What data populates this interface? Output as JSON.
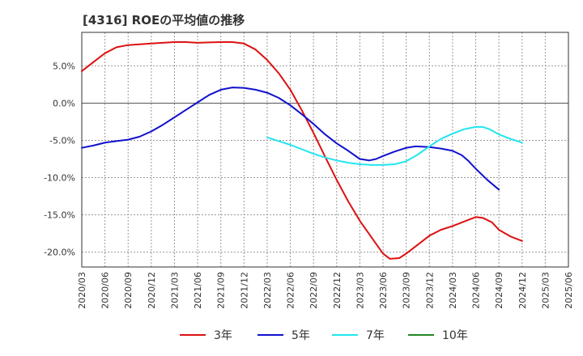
{
  "chart_data": {
    "type": "line",
    "title": "[4316]  ROEの平均値の推移",
    "xlabel": "",
    "ylabel": "",
    "ylim": [
      -22,
      9.5
    ],
    "yticks": [
      5,
      0,
      -5,
      -10,
      -15,
      -20
    ],
    "ytick_labels": [
      "5.0%",
      "0.0%",
      "-5.0%",
      "-10.0%",
      "-15.0%",
      "-20.0%"
    ],
    "xtick_labels": [
      "2020/03",
      "2020/06",
      "2020/09",
      "2020/12",
      "2021/03",
      "2021/06",
      "2021/09",
      "2021/12",
      "2022/03",
      "2022/06",
      "2022/09",
      "2022/12",
      "2023/03",
      "2023/06",
      "2023/09",
      "2023/12",
      "2024/03",
      "2024/06",
      "2024/09",
      "2024/12",
      "2025/03",
      "2025/06"
    ],
    "grid": true,
    "series": [
      {
        "name": "3年",
        "color": "#dd1111",
        "points": [
          [
            0,
            4.3
          ],
          [
            0.5,
            5.5
          ],
          [
            1,
            6.7
          ],
          [
            1.5,
            7.5
          ],
          [
            2,
            7.8
          ],
          [
            2.5,
            7.9
          ],
          [
            3,
            8.0
          ],
          [
            3.5,
            8.1
          ],
          [
            4,
            8.2
          ],
          [
            4.5,
            8.2
          ],
          [
            5,
            8.1
          ],
          [
            5.5,
            8.15
          ],
          [
            6,
            8.2
          ],
          [
            6.5,
            8.2
          ],
          [
            7,
            8.0
          ],
          [
            7.5,
            7.2
          ],
          [
            8,
            5.8
          ],
          [
            8.5,
            4.0
          ],
          [
            9,
            1.8
          ],
          [
            9.5,
            -1.0
          ],
          [
            10,
            -4.0
          ],
          [
            10.5,
            -7.2
          ],
          [
            11,
            -10.3
          ],
          [
            11.5,
            -13.2
          ],
          [
            12,
            -15.8
          ],
          [
            12.5,
            -18.0
          ],
          [
            13,
            -20.2
          ],
          [
            13.3,
            -20.9
          ],
          [
            13.7,
            -20.8
          ],
          [
            14,
            -20.2
          ],
          [
            14.5,
            -19.0
          ],
          [
            15,
            -17.8
          ],
          [
            15.5,
            -17.0
          ],
          [
            16,
            -16.5
          ],
          [
            16.5,
            -15.9
          ],
          [
            17,
            -15.3
          ],
          [
            17.3,
            -15.4
          ],
          [
            17.7,
            -16.0
          ],
          [
            18,
            -17.0
          ],
          [
            18.5,
            -17.9
          ],
          [
            19,
            -18.5
          ]
        ]
      },
      {
        "name": "5年",
        "color": "#1111cc",
        "points": [
          [
            0,
            -6.0
          ],
          [
            0.5,
            -5.7
          ],
          [
            1,
            -5.3
          ],
          [
            1.5,
            -5.1
          ],
          [
            2,
            -4.9
          ],
          [
            2.5,
            -4.5
          ],
          [
            3,
            -3.8
          ],
          [
            3.5,
            -2.9
          ],
          [
            4,
            -1.9
          ],
          [
            4.5,
            -0.9
          ],
          [
            5,
            0.1
          ],
          [
            5.5,
            1.1
          ],
          [
            6,
            1.8
          ],
          [
            6.5,
            2.1
          ],
          [
            7,
            2.05
          ],
          [
            7.5,
            1.8
          ],
          [
            8,
            1.4
          ],
          [
            8.5,
            0.7
          ],
          [
            9,
            -0.3
          ],
          [
            9.5,
            -1.5
          ],
          [
            10,
            -2.8
          ],
          [
            10.5,
            -4.2
          ],
          [
            11,
            -5.4
          ],
          [
            11.5,
            -6.4
          ],
          [
            12,
            -7.5
          ],
          [
            12.4,
            -7.7
          ],
          [
            12.7,
            -7.5
          ],
          [
            13,
            -7.1
          ],
          [
            13.5,
            -6.5
          ],
          [
            14,
            -6.0
          ],
          [
            14.4,
            -5.8
          ],
          [
            15,
            -5.9
          ],
          [
            15.5,
            -6.1
          ],
          [
            16,
            -6.4
          ],
          [
            16.4,
            -7.0
          ],
          [
            16.7,
            -7.8
          ],
          [
            17,
            -8.8
          ],
          [
            17.5,
            -10.3
          ],
          [
            18,
            -11.6
          ]
        ]
      },
      {
        "name": "7年",
        "color": "#22e5f0",
        "points": [
          [
            8,
            -4.6
          ],
          [
            8.5,
            -5.1
          ],
          [
            9,
            -5.6
          ],
          [
            9.5,
            -6.2
          ],
          [
            10,
            -6.8
          ],
          [
            10.5,
            -7.3
          ],
          [
            11,
            -7.7
          ],
          [
            11.5,
            -8.0
          ],
          [
            12,
            -8.2
          ],
          [
            12.5,
            -8.3
          ],
          [
            13,
            -8.3
          ],
          [
            13.5,
            -8.2
          ],
          [
            14,
            -7.8
          ],
          [
            14.5,
            -6.9
          ],
          [
            15,
            -5.8
          ],
          [
            15.5,
            -4.8
          ],
          [
            16,
            -4.1
          ],
          [
            16.5,
            -3.5
          ],
          [
            17,
            -3.2
          ],
          [
            17.3,
            -3.2
          ],
          [
            17.6,
            -3.5
          ],
          [
            18,
            -4.2
          ],
          [
            18.5,
            -4.8
          ],
          [
            19,
            -5.3
          ]
        ]
      },
      {
        "name": "10年",
        "color": "#228822",
        "points": []
      }
    ]
  }
}
